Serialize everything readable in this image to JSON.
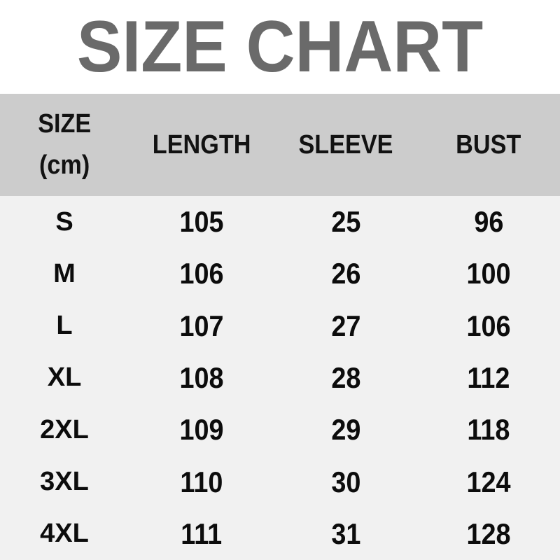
{
  "chart_data": {
    "type": "table",
    "title": "SIZE CHART",
    "columns": [
      "SIZE (cm)",
      "LENGTH",
      "SLEEVE",
      "BUST"
    ],
    "rows": [
      [
        "S",
        105,
        25,
        96
      ],
      [
        "M",
        106,
        26,
        100
      ],
      [
        "L",
        107,
        27,
        106
      ],
      [
        "XL",
        108,
        28,
        112
      ],
      [
        "2XL",
        109,
        29,
        118
      ],
      [
        "3XL",
        110,
        30,
        124
      ],
      [
        "4XL",
        111,
        31,
        128
      ]
    ],
    "units": "cm",
    "layout": "header row on gray band, 7 data rows, no grid lines"
  },
  "header": {
    "size_line1": "SIZE",
    "size_line2": "(cm)"
  },
  "colors": {
    "title_text": "#6a6a6a",
    "header_band": "#cccccc",
    "body_background": "#f1f1f1",
    "table_text": "#0c0c0c",
    "title_background": "#ffffff"
  }
}
